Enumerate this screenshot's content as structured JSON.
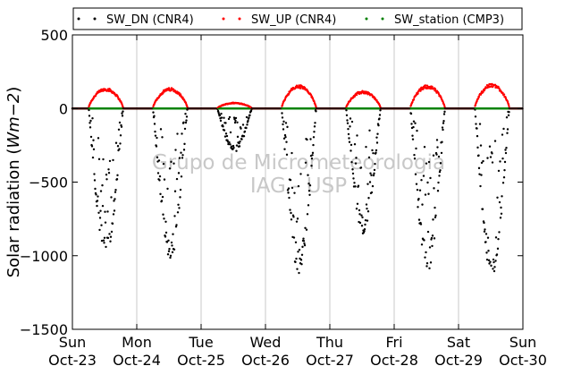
{
  "chart_data": {
    "type": "scatter",
    "ylabel": "Solar radiation ($Wm−2$)",
    "ylim": [
      -1500,
      500
    ],
    "yticks": [
      500,
      0,
      -500,
      -1000,
      -1500
    ],
    "ytick_labels": [
      "500",
      "0",
      "−500",
      "−1000",
      "−1500"
    ],
    "xlim": [
      0,
      7
    ],
    "xticks": [
      0,
      1,
      2,
      3,
      4,
      5,
      6,
      7
    ],
    "xtick_labels": [
      [
        "Sun",
        "Oct-23"
      ],
      [
        "Mon",
        "Oct-24"
      ],
      [
        "Tue",
        "Oct-25"
      ],
      [
        "Wed",
        "Oct-26"
      ],
      [
        "Thu",
        "Oct-27"
      ],
      [
        "Fri",
        "Oct-28"
      ],
      [
        "Sat",
        "Oct-29"
      ],
      [
        "Sun",
        "Oct-30"
      ]
    ],
    "grid": "vertical",
    "legend_position": "top",
    "watermark": [
      "Grupo de Micrometeorologia",
      "IAG - USP"
    ],
    "series": [
      {
        "name": "SW_DN (CNR4)",
        "color": "#000000",
        "daily_min": [
          -1020,
          -1040,
          -300,
          -1130,
          -850,
          -1110,
          -1150
        ]
      },
      {
        "name": "SW_UP (CNR4)",
        "color": "#ff0000",
        "daily_max": [
          140,
          140,
          40,
          160,
          120,
          160,
          170
        ]
      },
      {
        "name": "SW_station (CMP3)",
        "color": "#008000",
        "daily_max": [
          0,
          0,
          0,
          0,
          0,
          0,
          0
        ]
      }
    ],
    "daytime_fraction": [
      0.25,
      0.79
    ]
  }
}
